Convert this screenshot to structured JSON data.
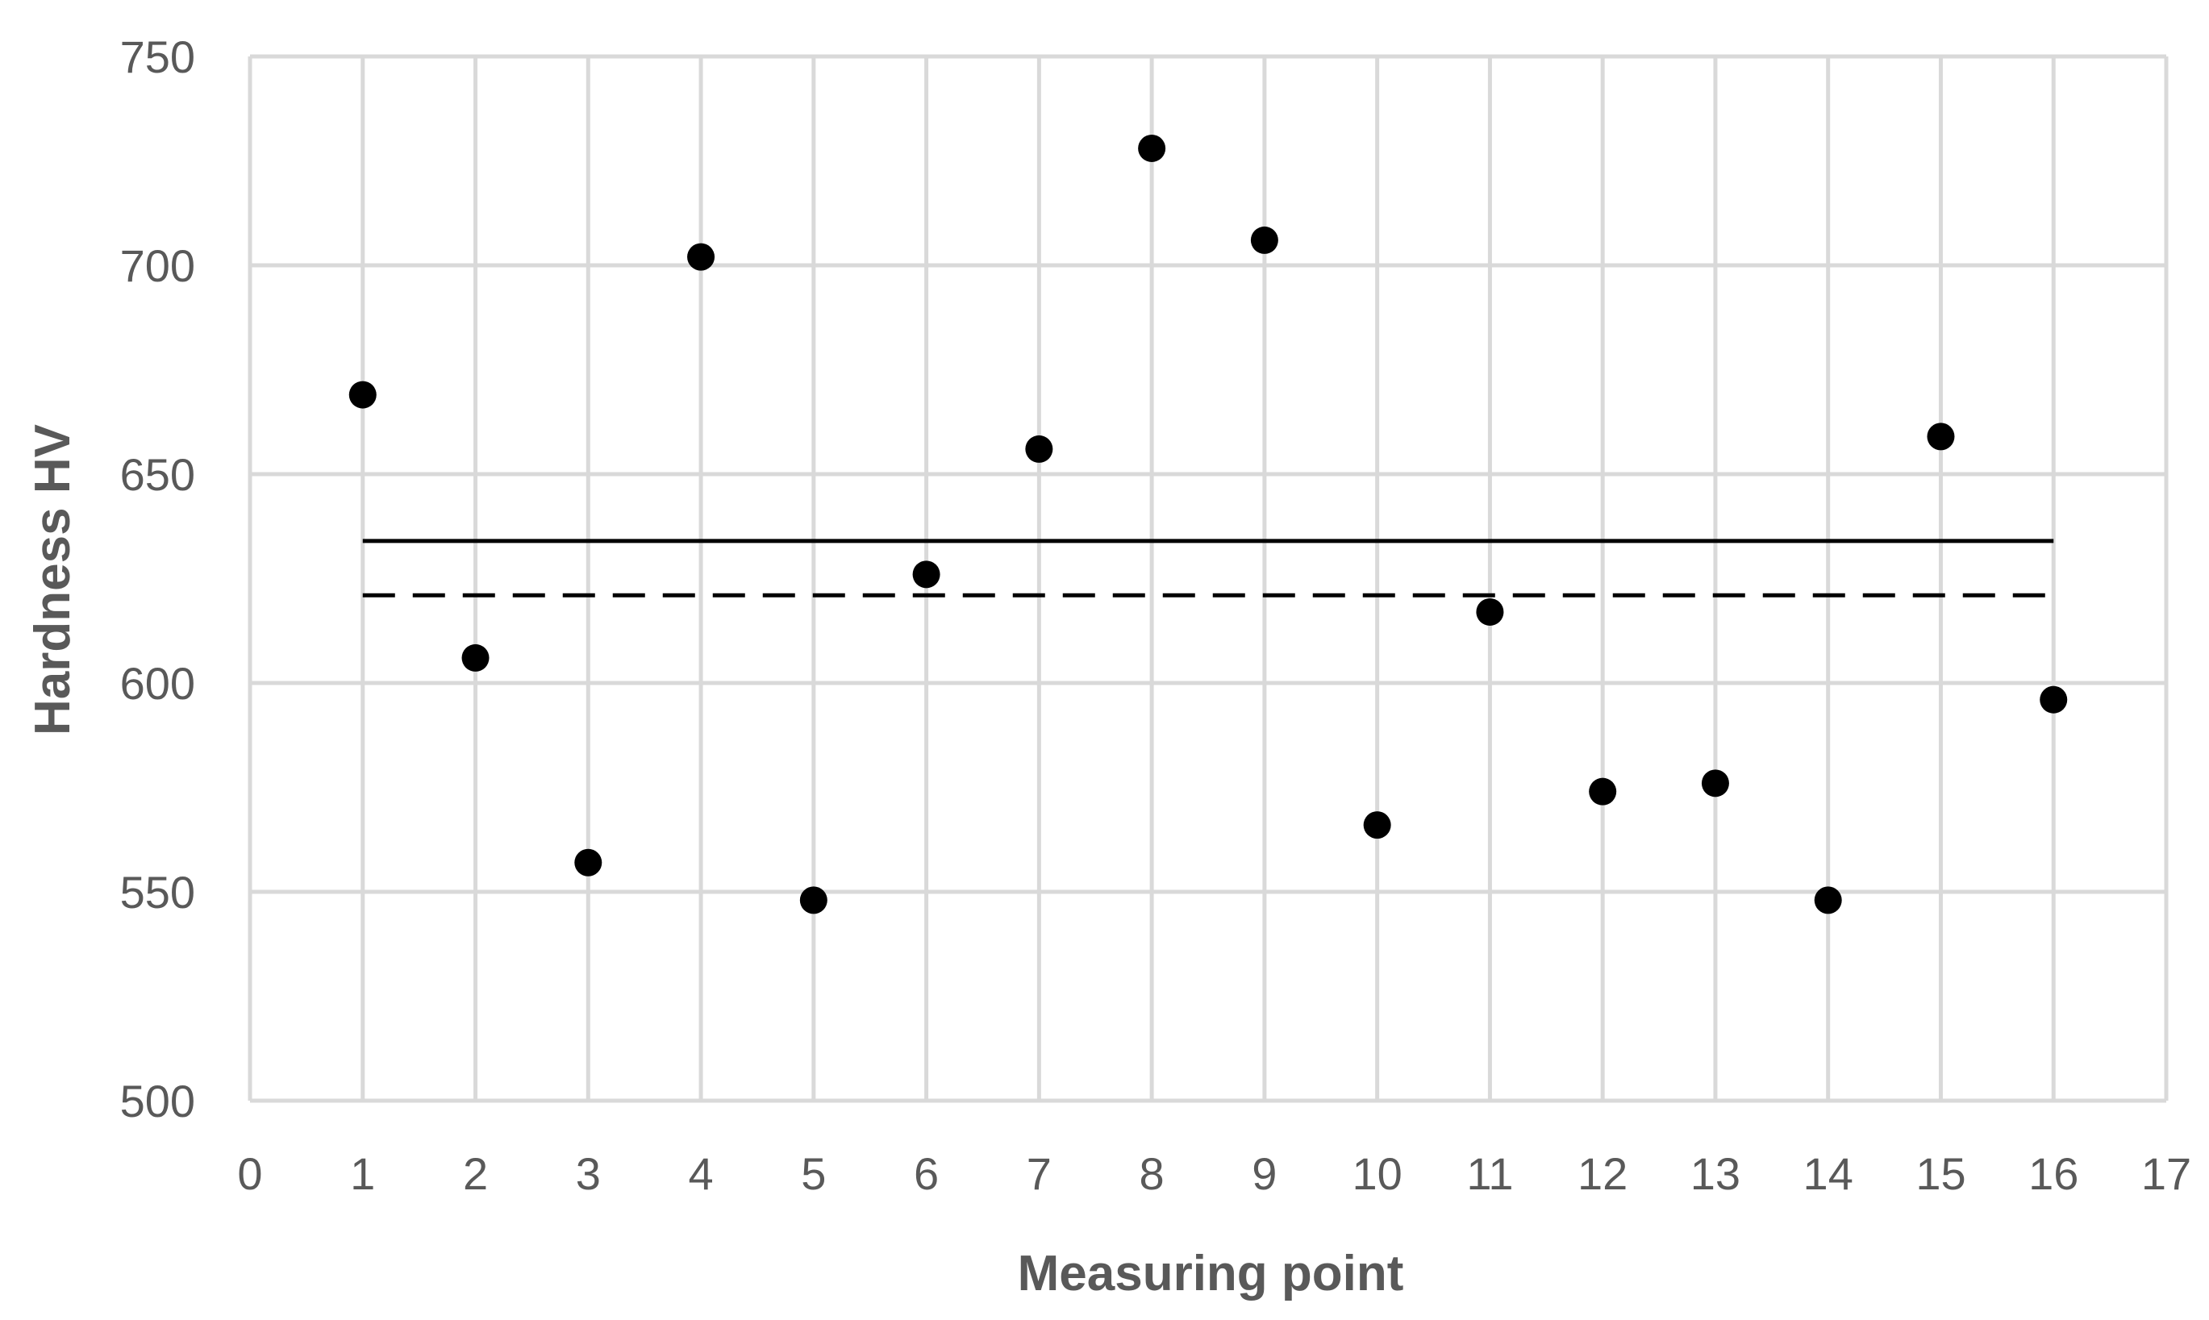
{
  "chart_data": {
    "type": "scatter",
    "title": "",
    "xlabel": "Measuring point",
    "ylabel": "Hardness HV",
    "xlim": [
      0,
      17
    ],
    "ylim": [
      500,
      750
    ],
    "xticks": [
      "0",
      "1",
      "2",
      "3",
      "4",
      "5",
      "6",
      "7",
      "8",
      "9",
      "10",
      "11",
      "12",
      "13",
      "14",
      "15",
      "16",
      "17"
    ],
    "yticks": [
      "500",
      "550",
      "600",
      "650",
      "700",
      "750"
    ],
    "grid": true,
    "series": [
      {
        "marker": "circle",
        "color": "#000000",
        "x": [
          1,
          2,
          3,
          4,
          5,
          6,
          7,
          8,
          9,
          10,
          11,
          12,
          13,
          14,
          15,
          16
        ],
        "y": [
          669,
          606,
          557,
          702,
          548,
          626,
          656,
          728,
          706,
          566,
          617,
          574,
          576,
          548,
          659,
          596
        ]
      }
    ],
    "reference_lines": [
      {
        "style": "solid",
        "color": "#000000",
        "x_range": [
          1,
          16
        ],
        "y": 634
      },
      {
        "style": "dashed",
        "color": "#000000",
        "x_range": [
          1,
          16
        ],
        "y": 621
      }
    ],
    "colors": {
      "grid": "#d9d9d9",
      "text": "#595959",
      "marker": "#000000"
    }
  }
}
